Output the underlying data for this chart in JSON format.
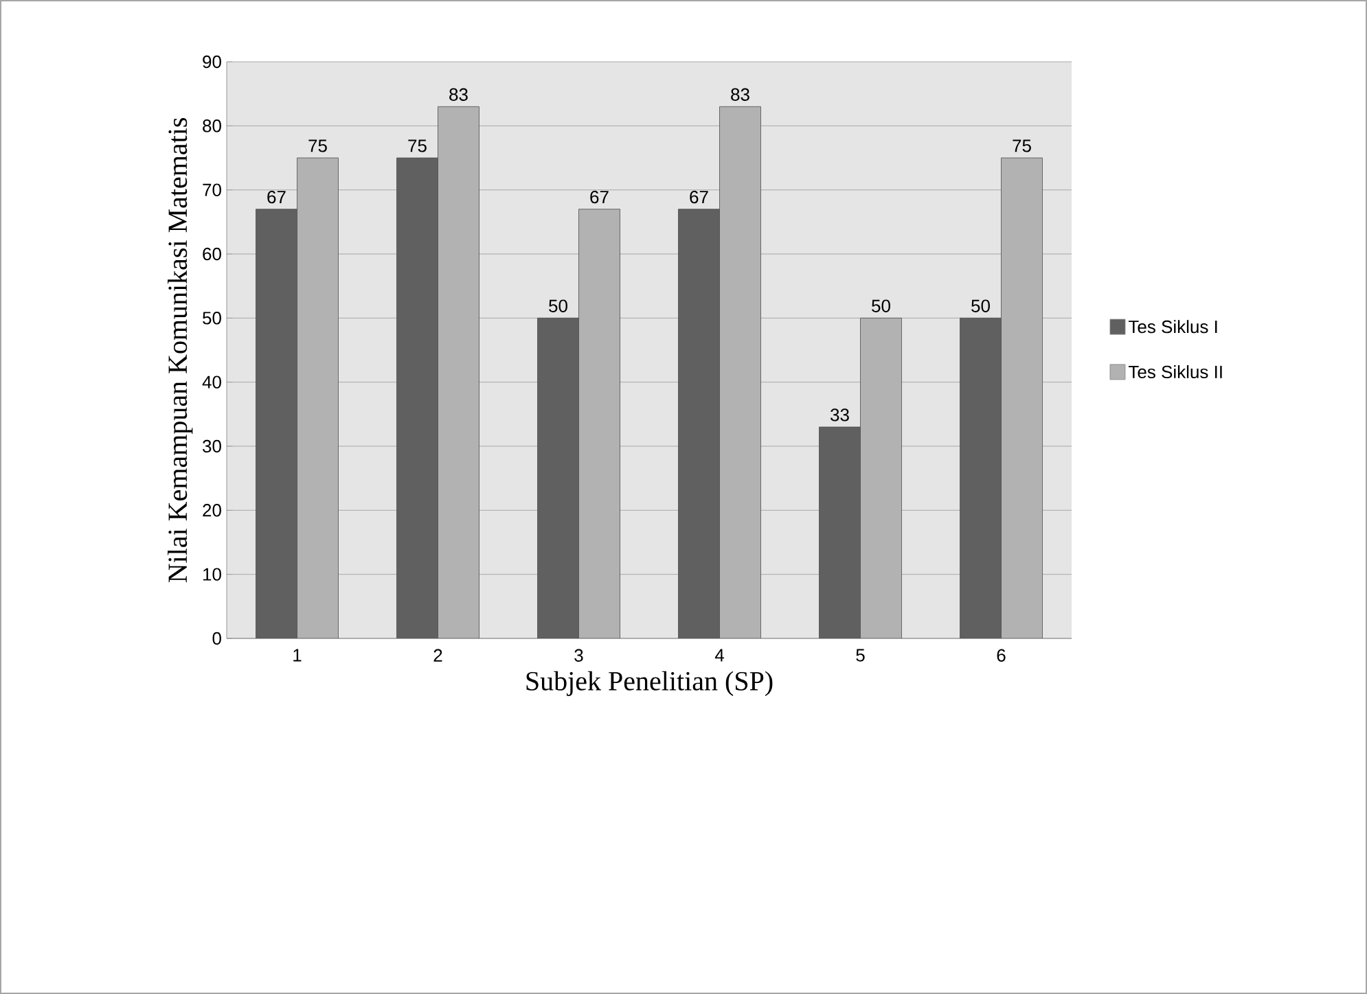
{
  "chart_data": {
    "type": "bar",
    "xlabel": "Subjek Penelitian (SP)",
    "ylabel": "Nilai Kemampuan Komunikasi Matematis",
    "categories": [
      "1",
      "2",
      "3",
      "4",
      "5",
      "6"
    ],
    "series": [
      {
        "name": "Tes Siklus I",
        "color": "#606060",
        "values": [
          67,
          75,
          50,
          67,
          33,
          50
        ]
      },
      {
        "name": "Tes Siklus II",
        "color": "#b2b2b2",
        "values": [
          75,
          83,
          67,
          83,
          50,
          75
        ]
      }
    ],
    "ylim": [
      0,
      90
    ],
    "yticks": [
      0,
      10,
      20,
      30,
      40,
      50,
      60,
      70,
      80,
      90
    ],
    "grid": "y",
    "legend": "right",
    "data_labels": true
  }
}
